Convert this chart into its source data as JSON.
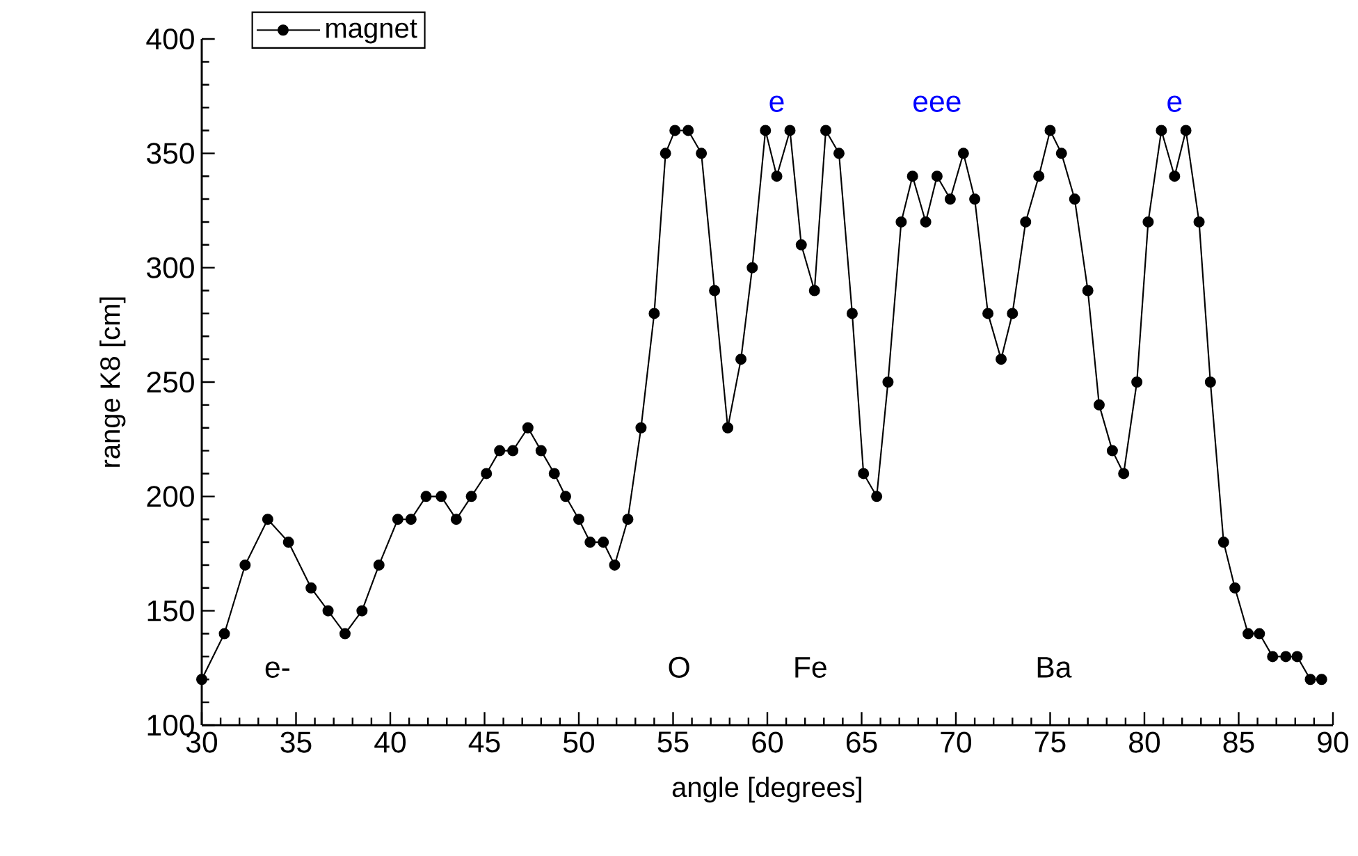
{
  "chart_data": {
    "type": "line",
    "xlabel": "angle [degrees]",
    "ylabel": "range K8 [cm]",
    "x": [
      30.0,
      31.2,
      32.3,
      33.5,
      34.6,
      35.8,
      36.7,
      37.6,
      38.5,
      39.4,
      40.4,
      41.1,
      41.9,
      42.7,
      43.5,
      44.3,
      45.1,
      45.8,
      46.5,
      47.3,
      48.0,
      48.7,
      49.3,
      50.0,
      50.6,
      51.3,
      51.9,
      52.6,
      53.3,
      54.0,
      54.6,
      55.1,
      55.8,
      56.5,
      57.2,
      57.9,
      58.6,
      59.2,
      59.9,
      60.5,
      61.2,
      61.8,
      62.5,
      63.1,
      63.8,
      64.5,
      65.1,
      65.8,
      66.4,
      67.1,
      67.7,
      68.4,
      69.0,
      69.7,
      70.4,
      71.0,
      71.7,
      72.4,
      73.0,
      73.7,
      74.4,
      75.0,
      75.6,
      76.3,
      77.0,
      77.6,
      78.3,
      78.9,
      79.6,
      80.2,
      80.9,
      81.6,
      82.2,
      82.9,
      83.5,
      84.2,
      84.8,
      85.5,
      86.1,
      86.8,
      87.5,
      88.1,
      88.8,
      89.4
    ],
    "series": [
      {
        "name": "magnet",
        "color": "#000000",
        "values": [
          120,
          140,
          170,
          190,
          180,
          160,
          150,
          140,
          150,
          170,
          190,
          190,
          200,
          200,
          190,
          200,
          210,
          220,
          220,
          230,
          220,
          210,
          200,
          190,
          180,
          180,
          170,
          190,
          230,
          280,
          350,
          360,
          360,
          350,
          290,
          230,
          260,
          300,
          360,
          340,
          360,
          310,
          290,
          360,
          350,
          280,
          210,
          200,
          250,
          320,
          340,
          320,
          340,
          330,
          350,
          330,
          280,
          260,
          280,
          320,
          340,
          360,
          350,
          330,
          290,
          240,
          220,
          210,
          250,
          320,
          360,
          340,
          360,
          320,
          250,
          180,
          160,
          140,
          140,
          130,
          130,
          130,
          120,
          120
        ]
      }
    ],
    "xlim": [
      30,
      90
    ],
    "xticks": [
      30,
      35,
      40,
      45,
      50,
      55,
      60,
      65,
      70,
      75,
      80,
      85,
      90
    ],
    "ylim": [
      100,
      400
    ],
    "yticks": [
      100,
      150,
      200,
      250,
      300,
      350,
      400
    ],
    "marker": "circle",
    "line_style": "solid",
    "legend": "top left",
    "grid": false,
    "annotations": [
      "e-",
      "O",
      "Fe",
      "Ba",
      {
        "text": "e",
        "x": 60.5,
        "y": 340
      },
      {
        "text": "eee",
        "x": 69.0,
        "y": 340
      },
      {
        "text": "e",
        "x": 81.6,
        "y": 340
      }
    ]
  }
}
